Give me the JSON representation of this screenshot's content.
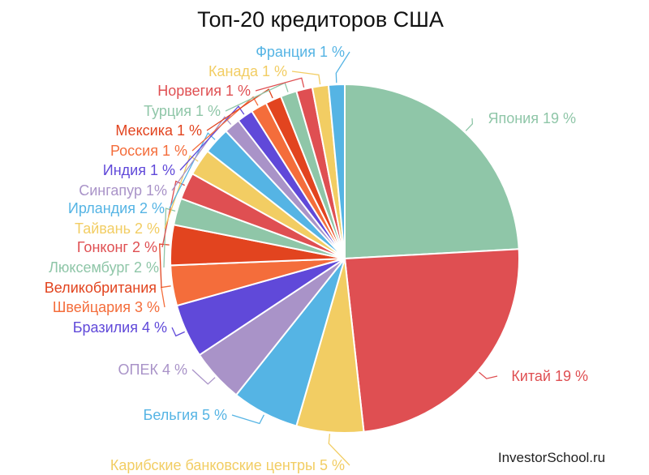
{
  "chart_data": {
    "type": "pie",
    "title": "Топ-20 кредиторов США",
    "slices": [
      {
        "label": "Япония 19 %",
        "value": 19.4,
        "color": "#8fc6a8"
      },
      {
        "label": "Китай 19 %",
        "value": 19.4,
        "color": "#df4f52"
      },
      {
        "label": "Карибские банковские центры 5 %",
        "value": 5.0,
        "color": "#f2cd63"
      },
      {
        "label": "Бельгия 5 %",
        "value": 5.0,
        "color": "#55b4e4"
      },
      {
        "label": "ОПЕК 4 %",
        "value": 4.0,
        "color": "#a993c8"
      },
      {
        "label": "Бразилия 4 %",
        "value": 4.0,
        "color": "#6049d9"
      },
      {
        "label": "Швейцария 3 %",
        "value": 3.0,
        "color": "#f46d3b"
      },
      {
        "label": "Великобритания",
        "value": 3.0,
        "color": "#e2441f"
      },
      {
        "label": "Люксембург 2 %",
        "value": 2.0,
        "color": "#8fc6a8"
      },
      {
        "label": "Гонконг 2 %",
        "value": 2.0,
        "color": "#df4f52"
      },
      {
        "label": "Тайвань 2 %",
        "value": 2.0,
        "color": "#f2cd63"
      },
      {
        "label": "Ирландия 2 %",
        "value": 2.0,
        "color": "#55b4e4"
      },
      {
        "label": "Сингапур 1%",
        "value": 1.2,
        "color": "#a993c8"
      },
      {
        "label": "Индия 1 %",
        "value": 1.2,
        "color": "#6049d9"
      },
      {
        "label": "Россия 1 %",
        "value": 1.2,
        "color": "#f46d3b"
      },
      {
        "label": "Мексика 1 %",
        "value": 1.2,
        "color": "#e2441f"
      },
      {
        "label": "Турция 1 %",
        "value": 1.2,
        "color": "#8fc6a8"
      },
      {
        "label": "Норвегия 1 %",
        "value": 1.2,
        "color": "#df4f52"
      },
      {
        "label": "Канада 1 %",
        "value": 1.2,
        "color": "#f2cd63"
      },
      {
        "label": "Франция 1 %",
        "value": 1.2,
        "color": "#55b4e4"
      }
    ]
  },
  "watermark": "InvestorSchool.ru"
}
